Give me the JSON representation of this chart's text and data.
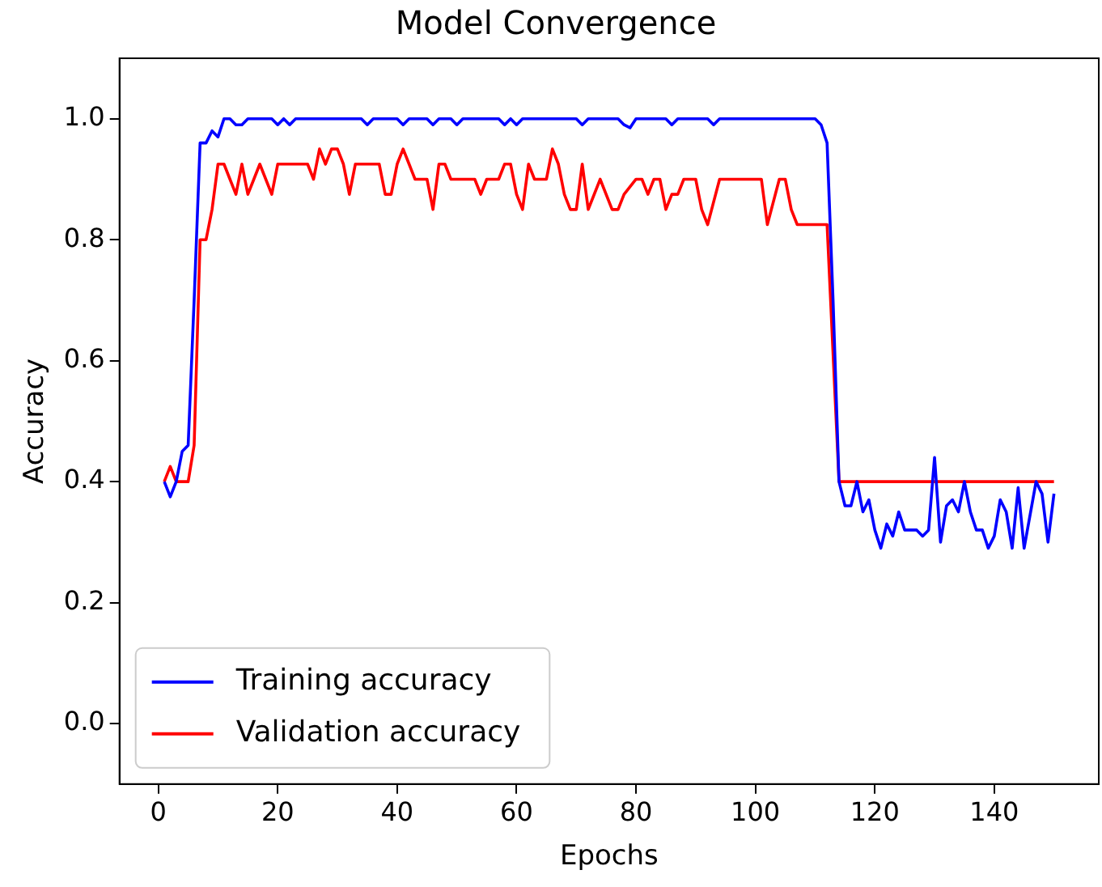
{
  "chart_data": {
    "type": "line",
    "title": "Model Convergence",
    "xlabel": "Epochs",
    "ylabel": "Accuracy",
    "xlim": [
      -6.5,
      157.5
    ],
    "xticks": [
      0,
      20,
      40,
      60,
      80,
      100,
      120,
      140
    ],
    "ylim": [
      -0.1,
      1.1
    ],
    "yticks": [
      {
        "value": 0,
        "label": "0.0"
      },
      {
        "value": 0.2,
        "label": "0.2"
      },
      {
        "value": 0.4,
        "label": "0.4"
      },
      {
        "value": 0.6,
        "label": "0.6"
      },
      {
        "value": 0.8,
        "label": "0.8"
      },
      {
        "value": 1,
        "label": "1.0"
      }
    ],
    "grid": false,
    "legend": "bottom left",
    "marker": "none",
    "line_style": "solid",
    "series": [
      {
        "name": "Training accuracy",
        "color": "#0000ff",
        "x": [
          1,
          2,
          3,
          4,
          5,
          6,
          7,
          8,
          9,
          10,
          11,
          12,
          13,
          14,
          15,
          19,
          20,
          21,
          22,
          23,
          34,
          35,
          36,
          40,
          41,
          42,
          45,
          46,
          47,
          49,
          50,
          51,
          57,
          58,
          59,
          60,
          61,
          70,
          71,
          72,
          77,
          78,
          79,
          80,
          81,
          85,
          86,
          87,
          92,
          93,
          94,
          110,
          111,
          112,
          113,
          114,
          115,
          116,
          117,
          118,
          119,
          120,
          121,
          122,
          123,
          124,
          125,
          127,
          128,
          129,
          130,
          131,
          132,
          133,
          134,
          135,
          136,
          137,
          138,
          139,
          140,
          141,
          142,
          143,
          144,
          145,
          147,
          148,
          149,
          150
        ],
        "values": [
          0.4,
          0.375,
          0.4,
          0.45,
          0.46,
          0.7,
          0.96,
          0.96,
          0.98,
          0.97,
          1,
          1,
          0.99,
          0.99,
          1,
          1,
          0.99,
          1,
          0.99,
          1,
          1,
          0.99,
          1,
          1,
          0.99,
          1,
          1,
          0.99,
          1,
          1,
          0.99,
          1,
          1,
          0.99,
          1,
          0.99,
          1,
          1,
          0.99,
          1,
          1,
          0.99,
          0.985,
          1,
          1,
          1,
          0.99,
          1,
          1,
          0.99,
          1,
          1,
          0.99,
          0.96,
          0.7,
          0.4,
          0.36,
          0.36,
          0.4,
          0.35,
          0.37,
          0.32,
          0.29,
          0.33,
          0.31,
          0.35,
          0.32,
          0.32,
          0.31,
          0.32,
          0.44,
          0.3,
          0.36,
          0.37,
          0.35,
          0.4,
          0.35,
          0.32,
          0.32,
          0.29,
          0.31,
          0.37,
          0.35,
          0.29,
          0.39,
          0.29,
          0.4,
          0.38,
          0.3,
          0.38
        ]
      },
      {
        "name": "Validation accuracy",
        "color": "#ff0000",
        "x": [
          1,
          2,
          3,
          5,
          6,
          7,
          8,
          9,
          10,
          11,
          12,
          13,
          14,
          15,
          16,
          17,
          18,
          19,
          20,
          25,
          26,
          27,
          28,
          29,
          30,
          31,
          32,
          33,
          37,
          38,
          39,
          40,
          41,
          42,
          43,
          45,
          46,
          47,
          48,
          49,
          53,
          54,
          55,
          57,
          58,
          59,
          60,
          61,
          62,
          63,
          65,
          66,
          67,
          68,
          69,
          70,
          71,
          72,
          74,
          76,
          77,
          78,
          80,
          81,
          82,
          83,
          84,
          85,
          86,
          87,
          88,
          90,
          91,
          92,
          94,
          101,
          102,
          104,
          105,
          106,
          107,
          110,
          112,
          114,
          150
        ],
        "values": [
          0.4,
          0.425,
          0.4,
          0.4,
          0.46,
          0.8,
          0.8,
          0.85,
          0.925,
          0.925,
          0.9,
          0.875,
          0.925,
          0.875,
          0.9,
          0.925,
          0.9,
          0.875,
          0.925,
          0.925,
          0.9,
          0.95,
          0.925,
          0.95,
          0.95,
          0.925,
          0.875,
          0.925,
          0.925,
          0.875,
          0.875,
          0.925,
          0.95,
          0.925,
          0.9,
          0.9,
          0.85,
          0.925,
          0.925,
          0.9,
          0.9,
          0.875,
          0.9,
          0.9,
          0.925,
          0.925,
          0.875,
          0.85,
          0.925,
          0.9,
          0.9,
          0.95,
          0.925,
          0.875,
          0.85,
          0.85,
          0.925,
          0.85,
          0.9,
          0.85,
          0.85,
          0.875,
          0.9,
          0.9,
          0.875,
          0.9,
          0.9,
          0.85,
          0.875,
          0.875,
          0.9,
          0.9,
          0.85,
          0.825,
          0.9,
          0.9,
          0.825,
          0.9,
          0.9,
          0.85,
          0.825,
          0.825,
          0.825,
          0.4,
          0.4
        ]
      }
    ]
  }
}
